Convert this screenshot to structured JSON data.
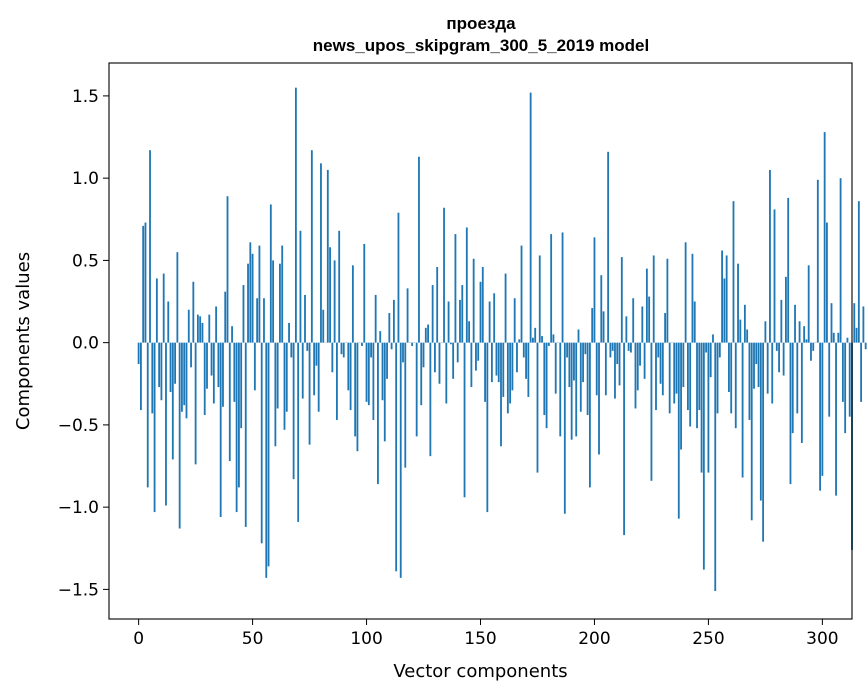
{
  "chart_data": {
    "type": "bar",
    "title_line1": "проезда",
    "title_line2": "news_upos_skipgram_300_5_2019 model",
    "xlabel": "Vector components",
    "ylabel": "Components values",
    "xlim": [
      -13,
      313
    ],
    "ylim": [
      -1.68,
      1.7
    ],
    "xticks": [
      0,
      50,
      100,
      150,
      200,
      250,
      300
    ],
    "yticks": [
      -1.5,
      -1.0,
      -0.5,
      0.0,
      0.5,
      1.0,
      1.5
    ],
    "ytick_labels": [
      "−1.5",
      "−1.0",
      "−0.5",
      "0.0",
      "0.5",
      "1.0",
      "1.5"
    ],
    "bar_color": "#1f77b4",
    "grid": false,
    "values": [
      -0.13,
      -0.41,
      0.71,
      0.73,
      -0.88,
      1.17,
      -0.43,
      -1.03,
      0.39,
      -0.27,
      -0.35,
      0.42,
      -0.99,
      0.25,
      -0.3,
      -0.71,
      -0.25,
      0.55,
      -1.13,
      -0.42,
      -0.38,
      -0.46,
      0.2,
      -0.15,
      0.37,
      -0.74,
      0.17,
      0.16,
      0.12,
      -0.44,
      -0.28,
      0.17,
      -0.2,
      -0.37,
      0.22,
      -0.27,
      -1.06,
      -0.39,
      0.31,
      0.89,
      -0.72,
      0.1,
      -0.36,
      -1.03,
      -0.88,
      -0.52,
      0.35,
      -1.12,
      0.48,
      0.61,
      0.54,
      -0.29,
      0.27,
      0.59,
      -1.22,
      0.27,
      -1.43,
      -1.36,
      0.84,
      0.5,
      -0.63,
      -0.4,
      0.48,
      0.59,
      -0.53,
      -0.42,
      0.12,
      -0.09,
      -0.83,
      1.55,
      -1.09,
      0.68,
      -0.34,
      0.29,
      -0.05,
      -0.62,
      1.17,
      -0.32,
      -0.14,
      -0.42,
      1.09,
      0.2,
      0.0,
      1.05,
      0.58,
      -0.18,
      0.5,
      -0.47,
      0.68,
      -0.07,
      -0.09,
      0.0,
      -0.29,
      -0.41,
      0.47,
      -0.57,
      -0.66,
      0.0,
      -0.02,
      0.6,
      -0.36,
      -0.38,
      -0.09,
      -0.47,
      0.29,
      -0.86,
      0.07,
      -0.35,
      -0.6,
      -0.22,
      0.18,
      -0.04,
      0.26,
      -1.39,
      0.79,
      -1.43,
      -0.12,
      -0.76,
      0.33,
      0.0,
      -0.02,
      0.0,
      -0.57,
      1.13,
      -0.38,
      -0.15,
      0.09,
      0.11,
      -0.69,
      0.35,
      -0.18,
      0.46,
      -0.25,
      0.0,
      0.82,
      -0.37,
      0.25,
      -0.01,
      -0.22,
      0.66,
      -0.12,
      0.26,
      0.35,
      -0.94,
      0.7,
      0.13,
      -0.27,
      0.51,
      -0.17,
      -0.11,
      0.37,
      0.46,
      -0.36,
      -1.03,
      0.25,
      -0.24,
      0.3,
      -0.2,
      -0.24,
      -0.63,
      -0.33,
      0.42,
      -0.43,
      -0.37,
      -0.29,
      0.27,
      -0.18,
      0.02,
      0.59,
      -0.09,
      -0.22,
      -0.33,
      1.52,
      0.03,
      0.09,
      -0.79,
      0.53,
      0.04,
      -0.44,
      -0.52,
      -0.02,
      0.66,
      0.05,
      -0.31,
      0.0,
      -0.57,
      0.67,
      -1.04,
      -0.09,
      -0.27,
      -0.59,
      -0.23,
      -0.57,
      0.08,
      -0.42,
      -0.24,
      -0.07,
      -0.44,
      -0.88,
      0.21,
      0.64,
      -0.32,
      -0.68,
      0.41,
      0.19,
      -0.32,
      1.16,
      -0.09,
      -0.05,
      -0.34,
      -0.13,
      -0.26,
      0.52,
      -1.17,
      0.16,
      -0.05,
      -0.06,
      0.27,
      -0.4,
      -0.29,
      -0.14,
      0.22,
      -0.22,
      0.45,
      0.28,
      -0.84,
      0.53,
      -0.41,
      -0.09,
      -0.25,
      -0.32,
      0.18,
      0.51,
      -0.43,
      0.0,
      -0.37,
      -0.31,
      -1.07,
      -0.65,
      -0.27,
      0.61,
      -0.41,
      -0.51,
      0.54,
      0.25,
      -0.52,
      -0.41,
      -0.79,
      -1.38,
      -0.06,
      -0.79,
      -0.21,
      0.05,
      -1.51,
      -0.43,
      -0.09,
      0.56,
      0.39,
      0.53,
      -0.3,
      -0.43,
      0.86,
      -0.52,
      0.48,
      0.14,
      -0.82,
      0.23,
      0.08,
      -0.47,
      -1.08,
      -0.28,
      -0.13,
      -0.27,
      -0.96,
      -1.21,
      0.13,
      -0.31,
      1.05,
      -0.37,
      0.81,
      -0.05,
      -0.18,
      0.26,
      -0.2,
      0.4,
      0.88,
      -0.86,
      -0.55,
      0.23,
      -0.43,
      0.13,
      -0.61,
      0.1,
      0.02,
      0.47,
      -0.11,
      -0.05,
      0.0,
      0.99,
      -0.9,
      -0.81,
      1.28,
      0.73,
      -0.45,
      0.24,
      0.06,
      -0.93,
      0.06,
      1.0,
      -0.36,
      -0.55,
      0.03,
      -0.45,
      -1.26,
      0.24,
      0.09,
      0.86,
      -0.36,
      0.22,
      -0.04
    ]
  }
}
